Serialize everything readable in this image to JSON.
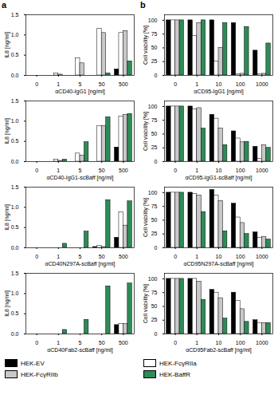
{
  "panel_labels": [
    "a",
    "b"
  ],
  "chart_data": [
    {
      "type": "bar",
      "x_label": "αCD40-IgG1 [ng/ml]",
      "y_label": "IL8 [ng/ml]",
      "categories": [
        0,
        1,
        5,
        50,
        500
      ],
      "ylim": [
        0,
        1.5
      ],
      "yticks": [
        {
          "value": 0,
          "label": "0.0"
        },
        0.5,
        {
          "value": 1,
          "label": "1.0"
        },
        1.5
      ],
      "series": [
        {
          "name": "HEK-EV",
          "color": "#000000",
          "values": [
            0,
            0,
            0,
            0,
            0.15
          ]
        },
        {
          "name": "HEK-FcγRIIa",
          "color": "#ffffff",
          "values": [
            0,
            0.05,
            0.42,
            1.15,
            1.05
          ]
        },
        {
          "name": "HEK-FcγRIIb",
          "color": "#c8c8c8",
          "values": [
            0,
            0.02,
            0.3,
            1.05,
            1.1
          ]
        },
        {
          "name": "HEK-BaffR",
          "color": "#2e8b57",
          "values": [
            0,
            0,
            0,
            0.05,
            0.35
          ]
        }
      ]
    },
    {
      "type": "bar",
      "x_label": "αCD40-IgG1-scBaff [ng/ml]",
      "y_label": "IL8 [ng/ml]",
      "categories": [
        0,
        1,
        5,
        50,
        500
      ],
      "ylim": [
        0,
        1.5
      ],
      "yticks": [
        {
          "value": 0,
          "label": "0.0"
        },
        0.5,
        {
          "value": 1,
          "label": "1.0"
        },
        1.5
      ],
      "series": [
        {
          "name": "HEK-EV",
          "color": "#000000",
          "values": [
            0,
            0,
            0,
            0,
            0.35
          ]
        },
        {
          "name": "HEK-FcγRIIa",
          "color": "#ffffff",
          "values": [
            0,
            0.05,
            0.2,
            0.88,
            1.12
          ]
        },
        {
          "name": "HEK-FcγRIIb",
          "color": "#c8c8c8",
          "values": [
            0,
            0.02,
            0.15,
            0.88,
            1.15
          ]
        },
        {
          "name": "HEK-BaffR",
          "color": "#2e8b57",
          "values": [
            0,
            0.05,
            0.48,
            1.1,
            1.18
          ]
        }
      ]
    },
    {
      "type": "bar",
      "x_label": "αCD40N297A-scBaff [ng/ml]",
      "y_label": "IL8 [ng/ml]",
      "categories": [
        0,
        1,
        5,
        50,
        500
      ],
      "ylim": [
        0,
        1.5
      ],
      "yticks": [
        {
          "value": 0,
          "label": "0.0"
        },
        0.5,
        {
          "value": 1,
          "label": "1.0"
        },
        1.5
      ],
      "series": [
        {
          "name": "HEK-EV",
          "color": "#000000",
          "values": [
            0,
            0,
            0,
            0.02,
            0.25
          ]
        },
        {
          "name": "HEK-FcγRIIa",
          "color": "#ffffff",
          "values": [
            0,
            0,
            0,
            0.05,
            0.88
          ]
        },
        {
          "name": "HEK-FcγRIIb",
          "color": "#c8c8c8",
          "values": [
            0,
            0,
            0,
            0.02,
            0.55
          ]
        },
        {
          "name": "HEK-BaffR",
          "color": "#2e8b57",
          "values": [
            0,
            0.1,
            0.4,
            1.18,
            1.15
          ]
        }
      ]
    },
    {
      "type": "bar",
      "x_label": "αCD40Fab2-scBaff [ng/ml]",
      "y_label": "IL8 [ng/ml]",
      "categories": [
        0,
        1,
        5,
        50,
        500
      ],
      "ylim": [
        0,
        1.5
      ],
      "yticks": [
        {
          "value": 0,
          "label": "0.0"
        },
        0.5,
        {
          "value": 1,
          "label": "1.0"
        },
        1.5
      ],
      "series": [
        {
          "name": "HEK-EV",
          "color": "#000000",
          "values": [
            0,
            0,
            0,
            0,
            0.22
          ]
        },
        {
          "name": "HEK-FcγRIIa",
          "color": "#ffffff",
          "values": [
            0,
            0,
            0,
            0,
            0.25
          ]
        },
        {
          "name": "HEK-FcγRIIb",
          "color": "#c8c8c8",
          "values": [
            0,
            0,
            0,
            0,
            0.25
          ]
        },
        {
          "name": "HEK-BaffR",
          "color": "#2e8b57",
          "values": [
            0,
            0.1,
            0.35,
            1.18,
            1.25
          ]
        }
      ]
    },
    {
      "type": "bar",
      "x_label": "αCD95-IgG1 [ng/ml]",
      "y_label": "Cell viability [%]",
      "categories": [
        0,
        1,
        10,
        100,
        1000
      ],
      "ylim": [
        0,
        110
      ],
      "yticks": [
        0,
        25,
        50,
        75,
        100
      ],
      "series": [
        {
          "name": "HEK-EV",
          "color": "#000000",
          "values": [
            100,
            100,
            100,
            95,
            45
          ]
        },
        {
          "name": "HEK-FcγRIIa",
          "color": "#ffffff",
          "values": [
            100,
            72,
            25,
            2,
            2
          ]
        },
        {
          "name": "HEK-FcγRIIb",
          "color": "#c8c8c8",
          "values": [
            100,
            95,
            50,
            3,
            3
          ]
        },
        {
          "name": "HEK-BaffR",
          "color": "#2e8b57",
          "values": [
            100,
            100,
            95,
            88,
            58
          ]
        }
      ]
    },
    {
      "type": "bar",
      "x_label": "αCD95-IgG1-scBaff [ng/ml]",
      "y_label": "Cell viability [%]",
      "categories": [
        0,
        1,
        10,
        100,
        1000
      ],
      "ylim": [
        0,
        110
      ],
      "yticks": [
        0,
        25,
        50,
        75,
        100
      ],
      "series": [
        {
          "name": "HEK-EV",
          "color": "#000000",
          "values": [
            100,
            100,
            85,
            55,
            27
          ]
        },
        {
          "name": "HEK-FcγRIIa",
          "color": "#ffffff",
          "values": [
            100,
            95,
            78,
            42,
            5
          ]
        },
        {
          "name": "HEK-FcγRIIb",
          "color": "#c8c8c8",
          "values": [
            100,
            97,
            60,
            35,
            30
          ]
        },
        {
          "name": "HEK-BaffR",
          "color": "#2e8b57",
          "values": [
            100,
            60,
            30,
            36,
            25
          ]
        }
      ]
    },
    {
      "type": "bar",
      "x_label": "αCD95N297A-scBaff [ng/ml]",
      "y_label": "Cell viability [%]",
      "categories": [
        0,
        1,
        10,
        100,
        1000
      ],
      "ylim": [
        0,
        110
      ],
      "yticks": [
        0,
        25,
        50,
        75,
        100
      ],
      "series": [
        {
          "name": "HEK-EV",
          "color": "#000000",
          "values": [
            100,
            100,
            105,
            80,
            28
          ]
        },
        {
          "name": "HEK-FcγRIIa",
          "color": "#ffffff",
          "values": [
            100,
            98,
            95,
            55,
            18
          ]
        },
        {
          "name": "HEK-FcγRIIb",
          "color": "#c8c8c8",
          "values": [
            100,
            95,
            85,
            45,
            20
          ]
        },
        {
          "name": "HEK-BaffR",
          "color": "#2e8b57",
          "values": [
            100,
            65,
            30,
            25,
            15
          ]
        }
      ]
    },
    {
      "type": "bar",
      "x_label": "αCD95Fab2-scBaff [ng/ml]",
      "y_label": "Cell viability [%]",
      "categories": [
        0,
        1,
        10,
        100,
        1000
      ],
      "ylim": [
        0,
        110
      ],
      "yticks": [
        0,
        25,
        50,
        75,
        100
      ],
      "series": [
        {
          "name": "HEK-EV",
          "color": "#000000",
          "values": [
            100,
            100,
            80,
            75,
            25
          ]
        },
        {
          "name": "HEK-FcγRIIa",
          "color": "#ffffff",
          "values": [
            100,
            100,
            75,
            60,
            20
          ]
        },
        {
          "name": "HEK-FcγRIIb",
          "color": "#c8c8c8",
          "values": [
            100,
            95,
            65,
            45,
            20
          ]
        },
        {
          "name": "HEK-BaffR",
          "color": "#2e8b57",
          "values": [
            100,
            62,
            28,
            22,
            20
          ]
        }
      ]
    }
  ]
}
